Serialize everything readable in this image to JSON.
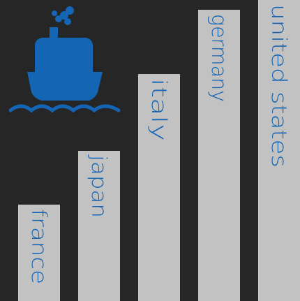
{
  "colors": {
    "background": "#262626",
    "bar": "#c2c2c2",
    "label": "#1565b5",
    "icon": "#1565b5"
  },
  "icon": {
    "name": "ship-icon"
  },
  "chart_data": {
    "type": "bar",
    "orientation": "vertical",
    "title": "",
    "xlabel": "",
    "ylabel": "",
    "axes_shown": false,
    "grid": false,
    "legend": "none",
    "category_labels_position": "inside-bars-rotated",
    "categories": [
      "france",
      "japan",
      "italy",
      "germany",
      "united states"
    ],
    "values": [
      138,
      215,
      325,
      417,
      431
    ],
    "ylim": [
      0,
      431
    ]
  }
}
